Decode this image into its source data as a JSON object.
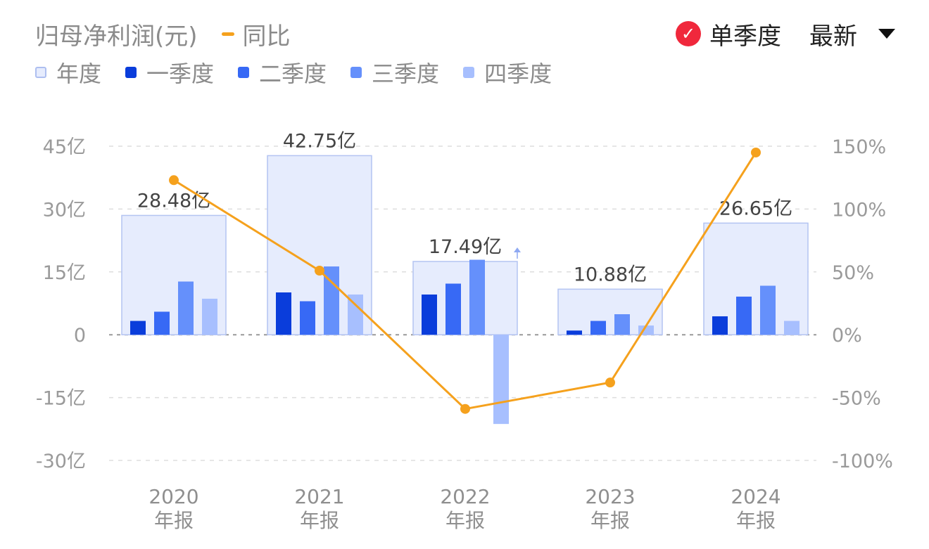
{
  "header": {
    "title": "归母净利润(元)",
    "yoy_label": "同比",
    "single_quarter_label": "单季度",
    "latest_label": "最新"
  },
  "legend": [
    {
      "label": "年度",
      "color": "#e6ecfd",
      "border": "#aebff0"
    },
    {
      "label": "一季度",
      "color": "#0a3ddb"
    },
    {
      "label": "二季度",
      "color": "#3769f5"
    },
    {
      "label": "三季度",
      "color": "#6590fb"
    },
    {
      "label": "四季度",
      "color": "#a7bffe"
    }
  ],
  "colors": {
    "annual_fill": "#e6ecfd",
    "annual_border": "#b4c4f2",
    "q1": "#0a3ddb",
    "q2": "#3769f5",
    "q3": "#6590fb",
    "q4": "#a7bffe",
    "yoy_line": "#f5a11d",
    "grid": "#dddddd",
    "zero_line": "#999999",
    "check_badge": "#f0283c"
  },
  "chart_data": {
    "type": "bar",
    "categories": [
      "2020",
      "2021",
      "2022",
      "2023",
      "2024"
    ],
    "category_sublabel": "年报",
    "annual": {
      "name": "年度",
      "values": [
        28.48,
        42.75,
        17.49,
        10.88,
        26.65
      ],
      "labels": [
        "28.48亿",
        "42.75亿",
        "17.49亿",
        "10.88亿",
        "26.65亿"
      ]
    },
    "series": [
      {
        "name": "一季度",
        "values": [
          3.3,
          10.1,
          9.6,
          1.0,
          4.4
        ]
      },
      {
        "name": "二季度",
        "values": [
          5.5,
          8.0,
          12.2,
          3.3,
          9.1
        ]
      },
      {
        "name": "三季度",
        "values": [
          12.7,
          16.3,
          17.9,
          4.9,
          11.7
        ]
      },
      {
        "name": "四季度",
        "values": [
          8.6,
          9.6,
          -21.3,
          2.2,
          3.3
        ]
      }
    ],
    "yoy": {
      "name": "同比",
      "values": [
        123,
        51,
        -59,
        -38,
        145
      ]
    },
    "left_axis": {
      "ticks": [
        45,
        30,
        15,
        0,
        -15,
        -30
      ],
      "tick_labels": [
        "45亿",
        "30亿",
        "15亿",
        "0",
        "-15亿",
        "-30亿"
      ],
      "range": [
        -30,
        45
      ],
      "unit": "亿"
    },
    "right_axis": {
      "ticks": [
        150,
        100,
        50,
        0,
        -50,
        -100
      ],
      "tick_labels": [
        "150%",
        "100%",
        "50%",
        "0%",
        "-50%",
        "-100%"
      ],
      "range": [
        -100,
        150
      ],
      "unit": "%"
    },
    "grid": true,
    "legend_position": "top-left"
  }
}
